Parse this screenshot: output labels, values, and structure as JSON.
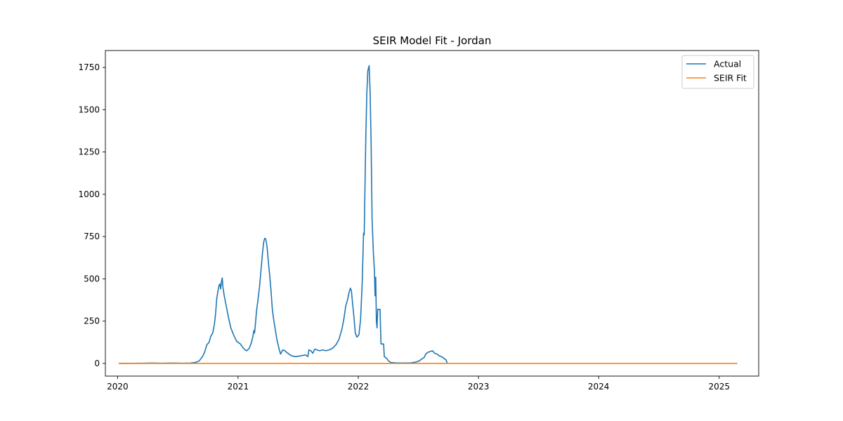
{
  "chart_data": {
    "type": "line",
    "title": "SEIR Model Fit - Jordan",
    "xlabel": "",
    "ylabel": "",
    "x_axis": {
      "type": "date",
      "range": [
        "2019-11-25",
        "2025-05-01"
      ],
      "ticks": [
        {
          "value": "2020-01-01",
          "label": "2020"
        },
        {
          "value": "2021-01-01",
          "label": "2021"
        },
        {
          "value": "2022-01-01",
          "label": "2022"
        },
        {
          "value": "2023-01-01",
          "label": "2023"
        },
        {
          "value": "2024-01-01",
          "label": "2024"
        },
        {
          "value": "2025-01-01",
          "label": "2025"
        }
      ]
    },
    "y_axis": {
      "range": [
        -75,
        1850
      ],
      "ticks": [
        {
          "value": 0,
          "label": "0"
        },
        {
          "value": 250,
          "label": "250"
        },
        {
          "value": 500,
          "label": "500"
        },
        {
          "value": 750,
          "label": "750"
        },
        {
          "value": 1000,
          "label": "1000"
        },
        {
          "value": 1250,
          "label": "1250"
        },
        {
          "value": 1500,
          "label": "1500"
        },
        {
          "value": 1750,
          "label": "1750"
        }
      ]
    },
    "grid": false,
    "legend": {
      "position": "top-right"
    },
    "series": [
      {
        "name": "Actual",
        "color": "#1f77b4",
        "points": [
          [
            "2020-01-05",
            0
          ],
          [
            "2020-03-15",
            1
          ],
          [
            "2020-04-15",
            2
          ],
          [
            "2020-05-15",
            1
          ],
          [
            "2020-06-15",
            2
          ],
          [
            "2020-07-15",
            1
          ],
          [
            "2020-08-10",
            2
          ],
          [
            "2020-08-25",
            6
          ],
          [
            "2020-09-05",
            15
          ],
          [
            "2020-09-15",
            40
          ],
          [
            "2020-09-22",
            70
          ],
          [
            "2020-09-28",
            110
          ],
          [
            "2020-10-05",
            125
          ],
          [
            "2020-10-10",
            160
          ],
          [
            "2020-10-16",
            180
          ],
          [
            "2020-10-21",
            230
          ],
          [
            "2020-10-25",
            300
          ],
          [
            "2020-10-28",
            380
          ],
          [
            "2020-11-01",
            430
          ],
          [
            "2020-11-04",
            460
          ],
          [
            "2020-11-07",
            470
          ],
          [
            "2020-11-09",
            440
          ],
          [
            "2020-11-12",
            490
          ],
          [
            "2020-11-14",
            505
          ],
          [
            "2020-11-16",
            450
          ],
          [
            "2020-11-20",
            400
          ],
          [
            "2020-11-26",
            340
          ],
          [
            "2020-12-03",
            270
          ],
          [
            "2020-12-10",
            210
          ],
          [
            "2020-12-18",
            170
          ],
          [
            "2020-12-28",
            130
          ],
          [
            "2021-01-08",
            115
          ],
          [
            "2021-01-15",
            95
          ],
          [
            "2021-01-22",
            80
          ],
          [
            "2021-01-28",
            75
          ],
          [
            "2021-02-04",
            90
          ],
          [
            "2021-02-10",
            120
          ],
          [
            "2021-02-15",
            160
          ],
          [
            "2021-02-18",
            195
          ],
          [
            "2021-02-20",
            180
          ],
          [
            "2021-02-23",
            240
          ],
          [
            "2021-02-26",
            310
          ],
          [
            "2021-03-02",
            370
          ],
          [
            "2021-03-07",
            450
          ],
          [
            "2021-03-12",
            560
          ],
          [
            "2021-03-16",
            650
          ],
          [
            "2021-03-20",
            720
          ],
          [
            "2021-03-23",
            740
          ],
          [
            "2021-03-26",
            735
          ],
          [
            "2021-03-30",
            690
          ],
          [
            "2021-04-03",
            600
          ],
          [
            "2021-04-07",
            520
          ],
          [
            "2021-04-11",
            430
          ],
          [
            "2021-04-15",
            320
          ],
          [
            "2021-04-19",
            260
          ],
          [
            "2021-04-24",
            200
          ],
          [
            "2021-04-29",
            140
          ],
          [
            "2021-05-05",
            90
          ],
          [
            "2021-05-10",
            55
          ],
          [
            "2021-05-14",
            70
          ],
          [
            "2021-05-17",
            80
          ],
          [
            "2021-05-23",
            75
          ],
          [
            "2021-06-01",
            60
          ],
          [
            "2021-06-12",
            45
          ],
          [
            "2021-06-25",
            40
          ],
          [
            "2021-07-10",
            45
          ],
          [
            "2021-07-25",
            50
          ],
          [
            "2021-08-01",
            40
          ],
          [
            "2021-08-04",
            80
          ],
          [
            "2021-08-10",
            75
          ],
          [
            "2021-08-16",
            60
          ],
          [
            "2021-08-22",
            85
          ],
          [
            "2021-08-28",
            80
          ],
          [
            "2021-09-05",
            75
          ],
          [
            "2021-09-15",
            80
          ],
          [
            "2021-09-25",
            75
          ],
          [
            "2021-10-05",
            80
          ],
          [
            "2021-10-15",
            90
          ],
          [
            "2021-10-25",
            110
          ],
          [
            "2021-11-03",
            140
          ],
          [
            "2021-11-12",
            200
          ],
          [
            "2021-11-18",
            260
          ],
          [
            "2021-11-24",
            340
          ],
          [
            "2021-11-30",
            380
          ],
          [
            "2021-12-04",
            420
          ],
          [
            "2021-12-08",
            445
          ],
          [
            "2021-12-11",
            430
          ],
          [
            "2021-12-15",
            350
          ],
          [
            "2021-12-19",
            270
          ],
          [
            "2021-12-23",
            180
          ],
          [
            "2021-12-28",
            155
          ],
          [
            "2022-01-03",
            170
          ],
          [
            "2022-01-08",
            260
          ],
          [
            "2022-01-13",
            480
          ],
          [
            "2022-01-17",
            770
          ],
          [
            "2022-01-19",
            760
          ],
          [
            "2022-01-21",
            1000
          ],
          [
            "2022-01-24",
            1350
          ],
          [
            "2022-01-27",
            1600
          ],
          [
            "2022-01-30",
            1730
          ],
          [
            "2022-02-01",
            1745
          ],
          [
            "2022-02-03",
            1760
          ],
          [
            "2022-02-06",
            1600
          ],
          [
            "2022-02-09",
            1300
          ],
          [
            "2022-02-12",
            850
          ],
          [
            "2022-02-16",
            650
          ],
          [
            "2022-02-19",
            550
          ],
          [
            "2022-02-21",
            400
          ],
          [
            "2022-02-23",
            510
          ],
          [
            "2022-02-25",
            250
          ],
          [
            "2022-02-27",
            210
          ],
          [
            "2022-03-01",
            320
          ],
          [
            "2022-03-08",
            320
          ],
          [
            "2022-03-11",
            115
          ],
          [
            "2022-03-19",
            115
          ],
          [
            "2022-03-21",
            40
          ],
          [
            "2022-03-28",
            30
          ],
          [
            "2022-04-03",
            15
          ],
          [
            "2022-04-10",
            5
          ],
          [
            "2022-04-25",
            3
          ],
          [
            "2022-05-15",
            2
          ],
          [
            "2022-06-10",
            3
          ],
          [
            "2022-06-25",
            8
          ],
          [
            "2022-07-05",
            15
          ],
          [
            "2022-07-12",
            25
          ],
          [
            "2022-07-20",
            35
          ],
          [
            "2022-07-25",
            55
          ],
          [
            "2022-07-31",
            65
          ],
          [
            "2022-08-07",
            70
          ],
          [
            "2022-08-14",
            75
          ],
          [
            "2022-08-21",
            60
          ],
          [
            "2022-08-28",
            55
          ],
          [
            "2022-09-04",
            45
          ],
          [
            "2022-09-11",
            40
          ],
          [
            "2022-09-18",
            30
          ],
          [
            "2022-09-25",
            20
          ],
          [
            "2022-09-28",
            0
          ]
        ]
      },
      {
        "name": "SEIR Fit",
        "color": "#ff7f0e",
        "points": [
          [
            "2020-01-05",
            0
          ],
          [
            "2025-02-25",
            0
          ]
        ]
      }
    ]
  }
}
